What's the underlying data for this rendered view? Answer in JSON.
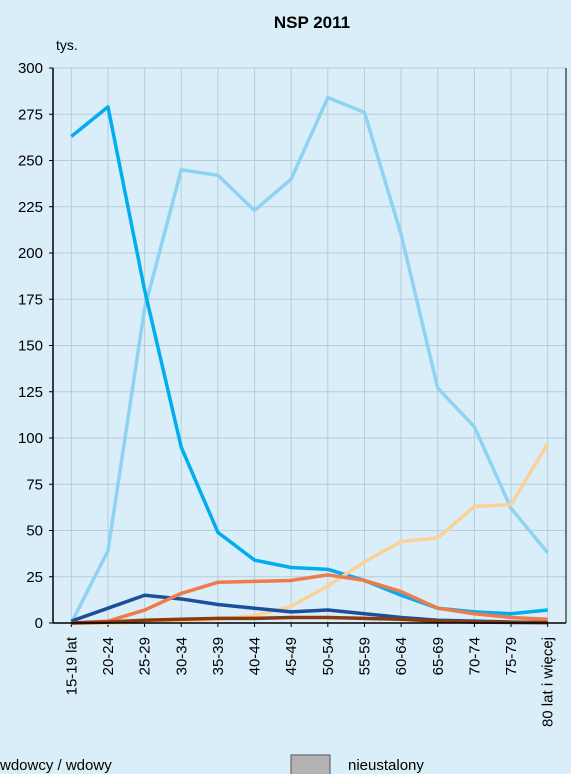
{
  "chart_data": {
    "type": "line",
    "title": "NSP 2011",
    "y_unit": "tys.",
    "categories": [
      "15-19 lat",
      "20-24",
      "25-29",
      "30-34",
      "35-39",
      "40-44",
      "45-49",
      "50-54",
      "55-59",
      "60-64",
      "65-69",
      "70-74",
      "75-79",
      "80 lat i więcej"
    ],
    "series": [
      {
        "color": "#8fd3f2",
        "values": [
          0,
          39,
          170,
          245,
          242,
          223,
          240,
          284,
          276,
          210,
          127,
          106,
          62,
          38
        ]
      },
      {
        "color": "#00aeef",
        "values": [
          263,
          279,
          180,
          95,
          49,
          34,
          30,
          29,
          23,
          15,
          8,
          6,
          5,
          7
        ]
      },
      {
        "name": "wdowcy / wdowy",
        "color": "#fdd09a",
        "values": [
          0,
          0,
          0.5,
          1,
          2,
          4,
          9,
          20,
          33,
          44,
          46,
          63,
          64,
          97
        ]
      },
      {
        "color": "#1a4f9c",
        "values": [
          1,
          8,
          15,
          13,
          10,
          8,
          6,
          7,
          5,
          3,
          1.5,
          1,
          0.5,
          0.3
        ]
      },
      {
        "color": "#f07b4a",
        "values": [
          0,
          1,
          7,
          16,
          22,
          22.5,
          23,
          26,
          23,
          17,
          8,
          5,
          3,
          2
        ]
      },
      {
        "color": "#8b3a0e",
        "values": [
          0,
          0.5,
          1.5,
          2,
          2.5,
          2.5,
          3,
          3,
          2.5,
          2,
          1,
          0.5,
          0.3,
          0.2
        ]
      }
    ],
    "legend": [
      {
        "name": "wdowcy / wdowy"
      },
      {
        "name": "nieustalony",
        "color": "#b3b3b3"
      }
    ],
    "ylim": [
      0,
      300
    ],
    "yticks": [
      0,
      25,
      50,
      75,
      100,
      125,
      150,
      175,
      200,
      225,
      250,
      275,
      300
    ],
    "grid": true
  }
}
